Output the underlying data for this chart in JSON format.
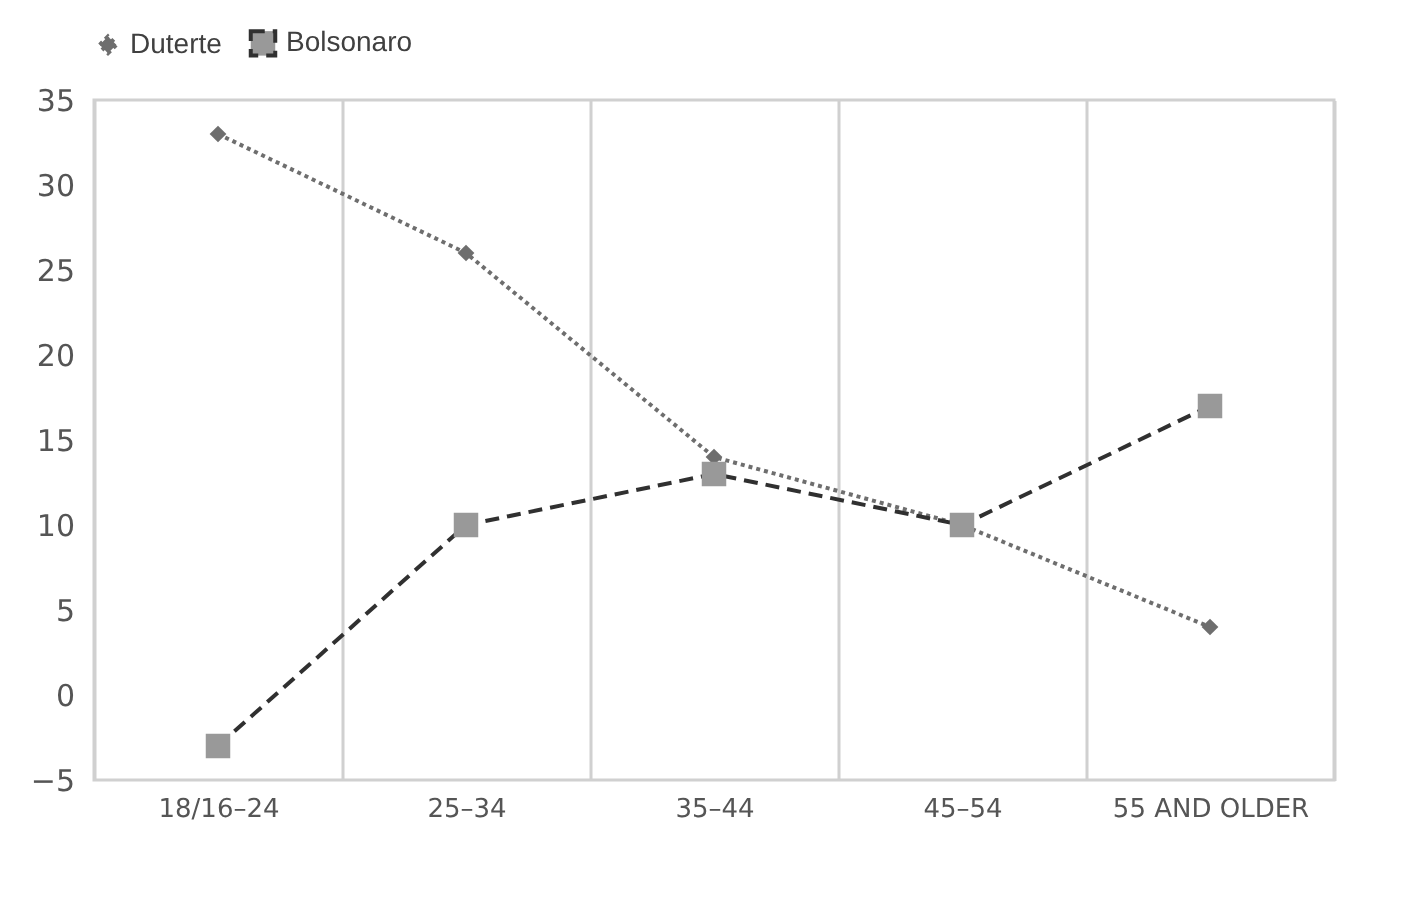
{
  "chart_data": {
    "type": "line",
    "categories": [
      "18/16–24",
      "25–34",
      "35–44",
      "45–54",
      "55 AND OLDER"
    ],
    "series": [
      {
        "name": "Duterte",
        "color": "#6e6e6e",
        "values": [
          33,
          26,
          14,
          10,
          4
        ],
        "marker": "diamond",
        "line_style": "dotted"
      },
      {
        "name": "Bolsonaro",
        "color": "#303030",
        "values": [
          -3,
          10,
          13,
          10,
          17
        ],
        "marker": "square",
        "line_style": "dashed"
      }
    ],
    "ylim": [
      -5,
      35
    ],
    "yticks": [
      -5,
      0,
      5,
      10,
      15,
      20,
      25,
      30,
      35
    ],
    "grid": "x",
    "legend": "top"
  }
}
